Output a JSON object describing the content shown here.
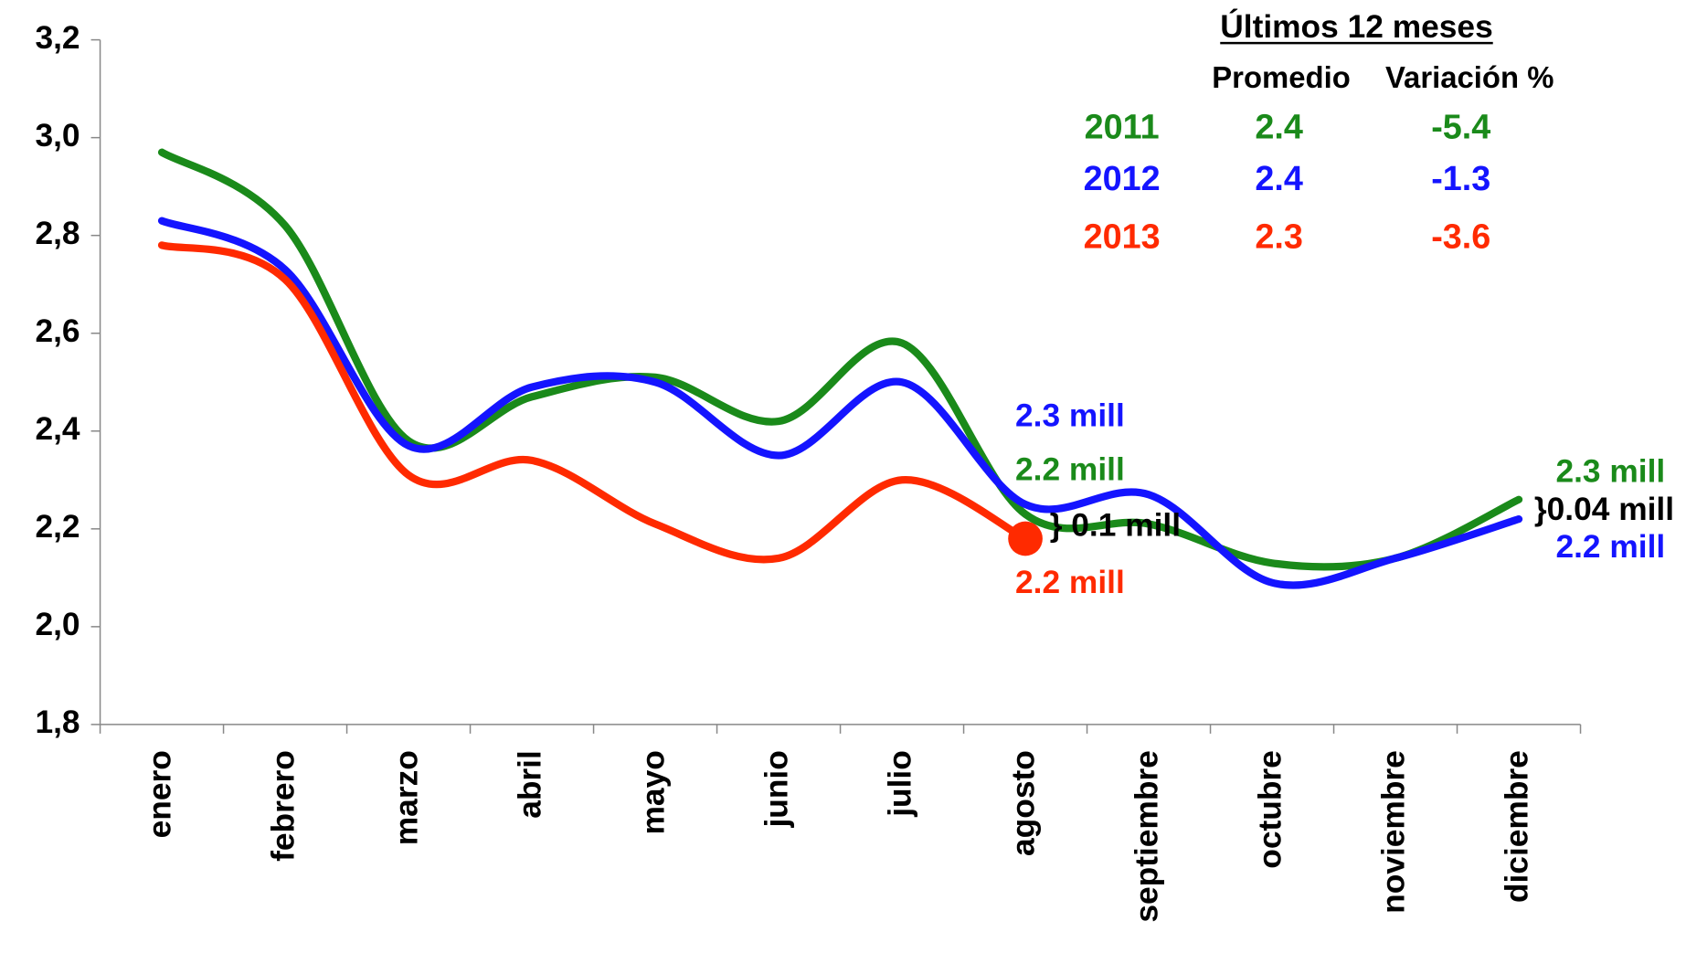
{
  "chart_data": {
    "type": "line",
    "categories": [
      "enero",
      "febrero",
      "marzo",
      "abril",
      "mayo",
      "junio",
      "julio",
      "agosto",
      "septiembre",
      "octubre",
      "noviembre",
      "diciembre"
    ],
    "series": [
      {
        "name": "2011",
        "color": "#1a8a1a",
        "values": [
          2.97,
          2.82,
          2.38,
          2.47,
          2.51,
          2.42,
          2.58,
          2.23,
          2.21,
          2.13,
          2.14,
          2.26
        ]
      },
      {
        "name": "2012",
        "color": "#1414ff",
        "values": [
          2.83,
          2.73,
          2.37,
          2.49,
          2.5,
          2.35,
          2.5,
          2.25,
          2.27,
          2.09,
          2.14,
          2.22
        ]
      },
      {
        "name": "2013",
        "color": "#ff2a00",
        "values": [
          2.78,
          2.71,
          2.31,
          2.34,
          2.21,
          2.14,
          2.3,
          2.18,
          null,
          null,
          null,
          null
        ]
      }
    ],
    "ylim": [
      1.8,
      3.2
    ],
    "yticks": [
      {
        "value": 1.8,
        "label": "1,8"
      },
      {
        "value": 2.0,
        "label": "2,0"
      },
      {
        "value": 2.2,
        "label": "2,2"
      },
      {
        "value": 2.4,
        "label": "2,4"
      },
      {
        "value": 2.6,
        "label": "2,6"
      },
      {
        "value": 2.8,
        "label": "2,8"
      },
      {
        "value": 3.0,
        "label": "3,0"
      },
      {
        "value": 3.2,
        "label": "3,2"
      }
    ],
    "table": {
      "title": "Últimos 12 meses",
      "headers": [
        "Promedio",
        "Variación %"
      ],
      "rows": [
        [
          "2011",
          2.4,
          -5.4
        ],
        [
          "2012",
          2.4,
          -1.3
        ],
        [
          "2013",
          2.3,
          -3.6
        ]
      ]
    },
    "annotations": [
      {
        "text": "2.3 mill",
        "color": "#1414ff"
      },
      {
        "text": "2.2 mill",
        "color": "#1a8a1a"
      },
      {
        "text": "} 0.1 mill",
        "color": "#000000"
      },
      {
        "text": "2.2 mill",
        "color": "#ff2a00"
      },
      {
        "text": "2.3 mill",
        "color": "#1a8a1a"
      },
      {
        "text": "}0.04 mill",
        "color": "#000000"
      },
      {
        "text": "2.2 mill",
        "color": "#1414ff"
      }
    ]
  }
}
